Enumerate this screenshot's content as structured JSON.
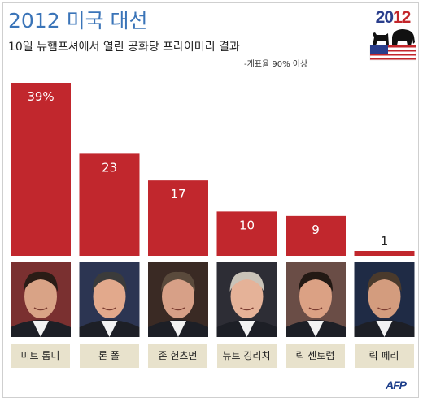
{
  "header": {
    "title": "2012 미국 대선",
    "subtitle": "10일 뉴햄프셔에서 열린 공화당 프라이머리 결과",
    "note": "-개표율 90% 이상"
  },
  "logo": {
    "year_part1": "20",
    "year_part2": "12"
  },
  "credit": "AFP",
  "colors": {
    "bar": "#c1272d",
    "title": "#3a74b8",
    "name_box": "#e8e2cc"
  },
  "chart_data": {
    "type": "bar",
    "categories": [
      "미트 롬니",
      "론 폴",
      "존 헌츠먼",
      "뉴트 깅리치",
      "릭 센토럼",
      "릭 페리"
    ],
    "values": [
      39,
      23,
      17,
      10,
      9,
      1
    ],
    "data_labels": [
      "39%",
      "23",
      "17",
      "10",
      "9",
      "1"
    ],
    "ylim": [
      0,
      39
    ],
    "title": "",
    "xlabel": "",
    "ylabel": "",
    "grid": false
  }
}
